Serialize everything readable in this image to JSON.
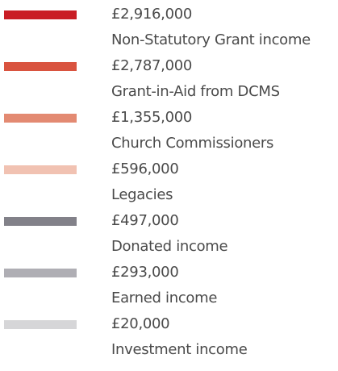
{
  "items": [
    {
      "amount": "£2,916,000",
      "label": "Non-Statutory Grant income",
      "color": "#c91d25"
    },
    {
      "amount": "£2,787,000",
      "label": "Grant-in-Aid from DCMS",
      "color": "#d9533f"
    },
    {
      "amount": "£1,355,000",
      "label": "Church Commissioners",
      "color": "#e38a72"
    },
    {
      "amount": "£596,000",
      "label": "Legacies",
      "color": "#f1c2b2"
    },
    {
      "amount": "£497,000",
      "label": "Donated income",
      "color": "#828189"
    },
    {
      "amount": "£293,000",
      "label": "Earned income",
      "color": "#afaeb4"
    },
    {
      "amount": "£20,000",
      "label": "Investment income",
      "color": "#d6d6d8"
    }
  ]
}
